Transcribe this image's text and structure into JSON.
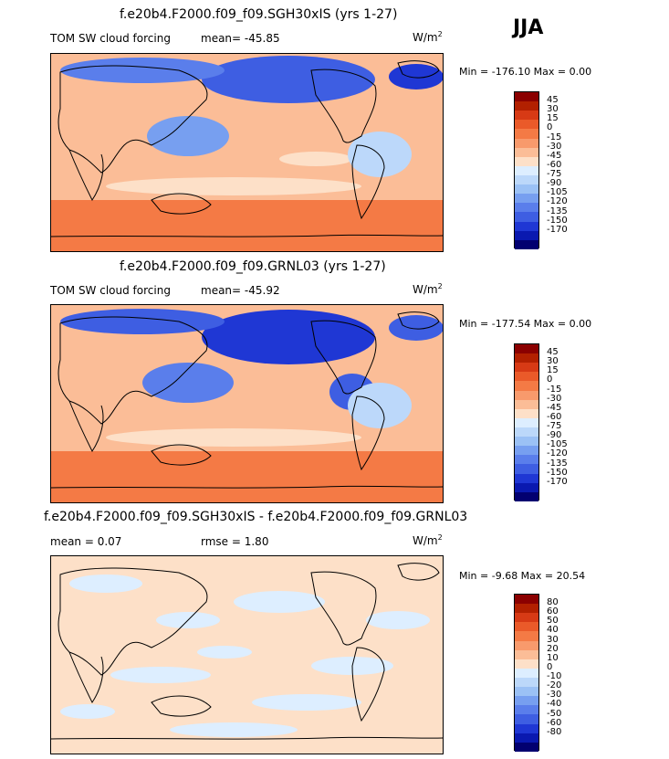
{
  "season": "JJA",
  "colors": {
    "scale_main": [
      "#8b0000",
      "#b22000",
      "#d73a15",
      "#ea5a29",
      "#f47a45",
      "#f89a6c",
      "#fbbd97",
      "#fde0c8",
      "#ddeeff",
      "#bcd8fa",
      "#9bc1f5",
      "#779ff0",
      "#5a7eeb",
      "#3e5ee2",
      "#1f37d4",
      "#0a19b0",
      "#020070"
    ],
    "scale_diff": [
      "#8b0000",
      "#b22000",
      "#d73a15",
      "#ea5a29",
      "#f47a45",
      "#f89a6c",
      "#fbbd97",
      "#fde0c8",
      "#ddeeff",
      "#bcd8fa",
      "#9bc1f5",
      "#779ff0",
      "#5a7eeb",
      "#3e5ee2",
      "#1f37d4",
      "#0a19b0",
      "#020070"
    ],
    "ocean_warm": "#fbbd97",
    "ocean_light": "#fde0c8",
    "cold_strong": "#1f37d4",
    "cold_mid": "#779ff0",
    "cold_light": "#bcd8fa",
    "southern_ocean": "#f47a45",
    "coast": "#000000"
  },
  "panels": [
    {
      "title": "f.e20b4.F2000.f09_f09.SGH30xIS (yrs 1-27)",
      "left_label": "TOM SW cloud forcing",
      "mean_text": "mean= -45.85",
      "units": "W/m",
      "units_sup": "2",
      "minmax": "Min = -176.10 Max = 0.00",
      "levels": [
        "45",
        "30",
        "15",
        "0",
        "-15",
        "-30",
        "-45",
        "-60",
        "-75",
        "-90",
        "-105",
        "-120",
        "-135",
        "-150",
        "-170"
      ]
    },
    {
      "title": "f.e20b4.F2000.f09_f09.GRNL03 (yrs 1-27)",
      "left_label": "TOM SW cloud forcing",
      "mean_text": "mean= -45.92",
      "units": "W/m",
      "units_sup": "2",
      "minmax": "Min = -177.54 Max = 0.00",
      "levels": [
        "45",
        "30",
        "15",
        "0",
        "-15",
        "-30",
        "-45",
        "-60",
        "-75",
        "-90",
        "-105",
        "-120",
        "-135",
        "-150",
        "-170"
      ]
    },
    {
      "title": "f.e20b4.F2000.f09_f09.SGH30xIS - f.e20b4.F2000.f09_f09.GRNL03",
      "left_label": "mean = 0.07",
      "mean_text": "rmse = 1.80",
      "units": "W/m",
      "units_sup": "2",
      "minmax": "Min = -9.68 Max = 20.54",
      "levels": [
        "80",
        "60",
        "50",
        "40",
        "30",
        "20",
        "10",
        "0",
        "-10",
        "-20",
        "-30",
        "-40",
        "-50",
        "-60",
        "-80"
      ]
    }
  ]
}
